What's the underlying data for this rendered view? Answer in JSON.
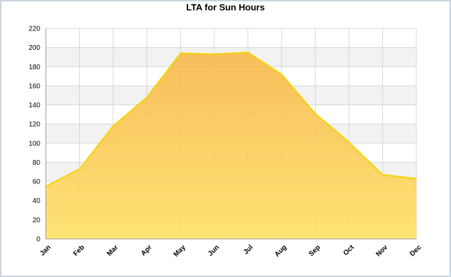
{
  "chart_data": {
    "type": "area",
    "title": "LTA for Sun Hours",
    "xlabel": "",
    "ylabel": "",
    "categories": [
      "Jan",
      "Feb",
      "Mar",
      "Apr",
      "May",
      "Jun",
      "Jul",
      "Aug",
      "Sep",
      "Oct",
      "Nov",
      "Dec"
    ],
    "values": [
      55,
      73,
      118,
      148,
      194,
      193,
      195,
      172,
      131,
      101,
      67,
      63
    ],
    "ylim": [
      0,
      220
    ],
    "yticks": [
      "0",
      "20",
      "40",
      "60",
      "80",
      "100",
      "120",
      "140",
      "160",
      "180",
      "200",
      "220"
    ],
    "grid": true,
    "legend": "none",
    "colors": {
      "line": "#f5d400",
      "fill_top": "#f7b84a",
      "fill_bottom": "#ffe066",
      "band": "#f2f2f2",
      "grid": "#d6d6d6"
    }
  }
}
